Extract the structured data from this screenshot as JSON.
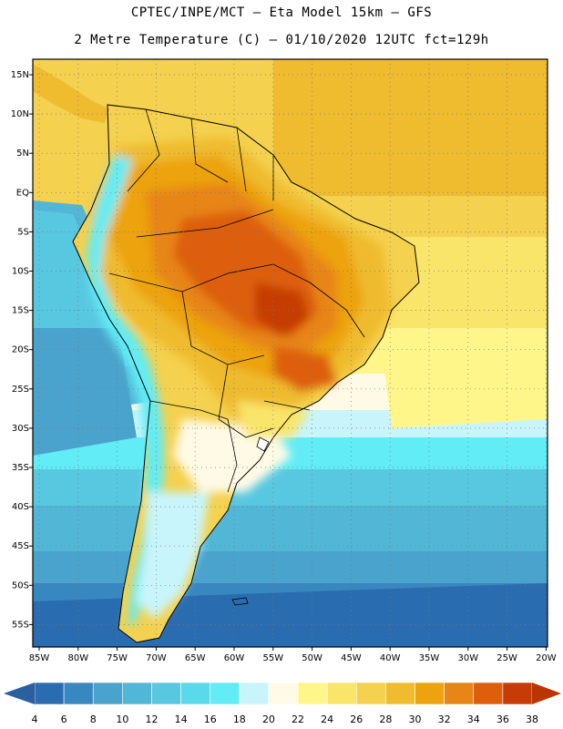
{
  "header": {
    "line1": "CPTEC/INPE/MCT –  Eta Model 15km – GFS",
    "line2": "2 Metre Temperature (C) – 01/10/2020 12UTC fct=129h"
  },
  "map": {
    "lat_labels": [
      "15N",
      "10N",
      "5N",
      "EQ",
      "5S",
      "10S",
      "15S",
      "20S",
      "25S",
      "30S",
      "35S",
      "40S",
      "45S",
      "50S",
      "55S"
    ],
    "lon_labels": [
      "85W",
      "80W",
      "75W",
      "70W",
      "65W",
      "60W",
      "55W",
      "50W",
      "45W",
      "40W",
      "35W",
      "30W",
      "25W",
      "20W"
    ]
  },
  "colorbar": {
    "colors": [
      "#2a6cb0",
      "#3787c0",
      "#49a3cc",
      "#52b6d6",
      "#58c8e0",
      "#5ad9ea",
      "#62ecf5",
      "#c8f5fb",
      "#fffae6",
      "#fff68a",
      "#f9e56a",
      "#f4d14e",
      "#efbb2f",
      "#eca30f",
      "#e78517",
      "#dd5f0c",
      "#c53c06"
    ],
    "left_arrow_color": "#2a5fa0",
    "right_arrow_color": "#b93604",
    "labels": [
      "4",
      "6",
      "8",
      "10",
      "12",
      "14",
      "16",
      "18",
      "20",
      "22",
      "24",
      "26",
      "28",
      "30",
      "32",
      "34",
      "36",
      "38"
    ]
  }
}
